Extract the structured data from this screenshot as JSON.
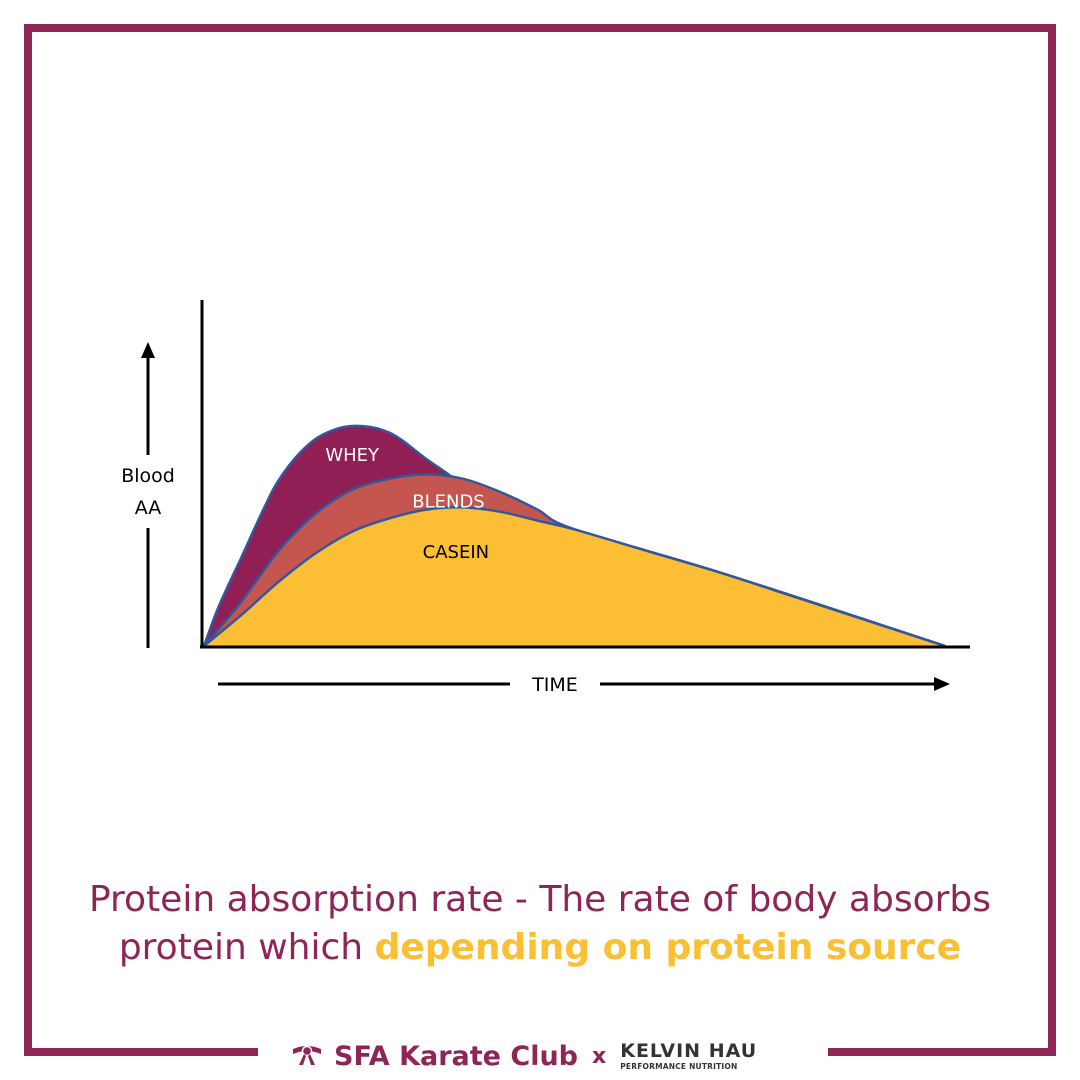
{
  "chart_data": {
    "type": "area",
    "ylabel": "Blood AA",
    "xlabel": "TIME",
    "series": [
      {
        "name": "WHEY",
        "color": "#8f1f55",
        "x": [
          0,
          0.2,
          0.5,
          0.8,
          1.0,
          1.3,
          1.6,
          2.0,
          2.5,
          3.0,
          3.3,
          3.5,
          4.0,
          4.5,
          5.0,
          7.0,
          10.0
        ],
        "y": [
          0,
          0.18,
          0.4,
          0.62,
          0.75,
          0.88,
          0.96,
          1.0,
          0.97,
          0.85,
          0.78,
          0.73,
          0.68,
          0.61,
          0.53,
          0.33,
          0
        ]
      },
      {
        "name": "BLENDS",
        "color": "#c5554f",
        "x": [
          0,
          0.5,
          1.0,
          1.5,
          2.0,
          2.5,
          3.0,
          3.5,
          4.0,
          4.5,
          5.0,
          7.0,
          10.0
        ],
        "y": [
          0,
          0.2,
          0.43,
          0.6,
          0.71,
          0.76,
          0.78,
          0.76,
          0.7,
          0.62,
          0.53,
          0.33,
          0
        ]
      },
      {
        "name": "CASEIN",
        "color": "#fbbe35",
        "x": [
          0,
          0.5,
          1.0,
          1.5,
          2.0,
          2.5,
          3.0,
          3.5,
          4.0,
          4.5,
          5.0,
          6.0,
          7.0,
          8.0,
          9.0,
          10.0
        ],
        "y": [
          0,
          0.14,
          0.29,
          0.42,
          0.52,
          0.58,
          0.62,
          0.63,
          0.61,
          0.57,
          0.53,
          0.43,
          0.33,
          0.22,
          0.11,
          0
        ]
      }
    ],
    "grid": false,
    "legend": "none"
  },
  "caption": {
    "line1": "Protein absorption rate - The rate of body absorbs",
    "line2_prefix": "protein which ",
    "line2_highlight": "depending on protein source"
  },
  "footer": {
    "brand": "SFA Karate Club",
    "separator": "x",
    "partner_name": "KELVIN HAU",
    "partner_sub": "PERFORMANCE NUTRITION"
  },
  "colors": {
    "frame": "#8f2456",
    "highlight": "#fbbf34",
    "curve_outline": "#33579a"
  },
  "icons": [
    "karate-belt-icon"
  ]
}
